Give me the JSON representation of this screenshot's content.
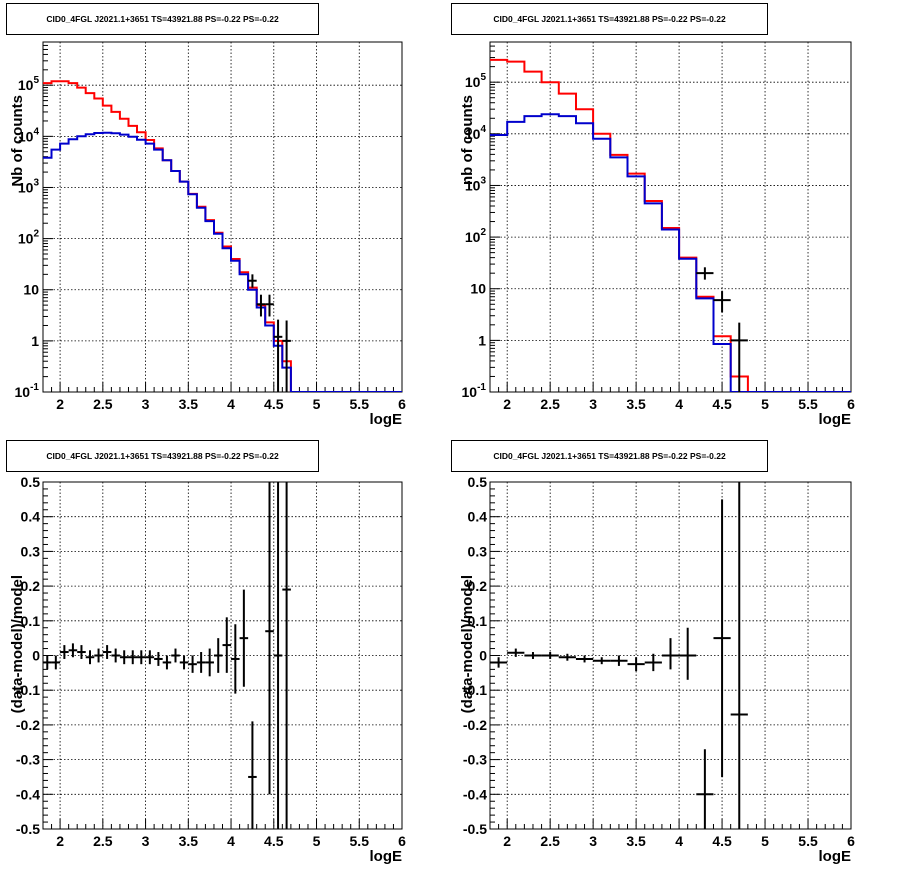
{
  "chart_data": [
    {
      "type": "step",
      "title": "CID0_4FGL J2021.1+3651 TS=43921.88 PS=-0.22 PS=-0.22",
      "xlabel": "logE",
      "ylabel": "Nb of counts",
      "xlim": [
        1.8,
        6.0
      ],
      "ylim": [
        0.1,
        700000
      ],
      "yscale": "log",
      "grid": true,
      "xticks": [
        "2",
        "2.5",
        "3",
        "3.5",
        "4",
        "4.5",
        "5",
        "5.5",
        "6"
      ],
      "yticks": [
        "10^-1",
        "1",
        "10",
        "10^2",
        "10^3",
        "10^4",
        "10^5"
      ],
      "bin_edges": [
        1.8,
        1.9,
        2.0,
        2.1,
        2.2,
        2.3,
        2.4,
        2.5,
        2.6,
        2.7,
        2.8,
        2.9,
        3.0,
        3.1,
        3.2,
        3.3,
        3.4,
        3.5,
        3.6,
        3.7,
        3.8,
        3.9,
        4.0,
        4.1,
        4.2,
        4.3,
        4.4,
        4.5,
        4.6,
        4.7,
        4.8,
        4.9,
        5.0,
        5.1,
        5.2,
        5.3,
        5.4,
        5.5,
        5.6,
        5.7,
        5.8,
        5.9,
        6.0
      ],
      "series": [
        {
          "color": "#ff0000",
          "values": [
            110000,
            120000,
            120000,
            110000,
            90000,
            70000,
            55000,
            40000,
            30000,
            22000,
            16000,
            12000,
            8500,
            5800,
            3400,
            2100,
            1300,
            750,
            420,
            230,
            130,
            70,
            40,
            22,
            11,
            5,
            2.3,
            1.0,
            0.4,
            0.1,
            0.1,
            0.1,
            0.1,
            0.1,
            0.1,
            0.1,
            0.1,
            0.1,
            0.1,
            0.1,
            0.1,
            0.1
          ]
        },
        {
          "color": "#0000cc",
          "values": [
            3800,
            5500,
            7200,
            8800,
            10000,
            11000,
            11600,
            11800,
            11500,
            10800,
            9800,
            8600,
            7200,
            5500,
            3400,
            2100,
            1300,
            740,
            400,
            220,
            125,
            65,
            37,
            20,
            10,
            4.5,
            2.0,
            0.8,
            0.3,
            0.1,
            0.1,
            0.1,
            0.1,
            0.1,
            0.1,
            0.1,
            0.1,
            0.1,
            0.1,
            0.1,
            0.1,
            0.1
          ]
        }
      ],
      "points": [
        {
          "x": 4.25,
          "y": 15,
          "ylo": 11,
          "yhi": 20,
          "xerr": 0.05
        },
        {
          "x": 4.35,
          "y": 5.2,
          "ylo": 3,
          "yhi": 8,
          "xerr": 0.05
        },
        {
          "x": 4.45,
          "y": 5.2,
          "ylo": 3,
          "yhi": 8,
          "xerr": 0.05
        },
        {
          "x": 4.55,
          "y": 1.2,
          "ylo": 0.1,
          "yhi": 2.6,
          "xerr": 0.05
        },
        {
          "x": 4.65,
          "y": 1.0,
          "ylo": 0.1,
          "yhi": 2.5,
          "xerr": 0.05
        }
      ]
    },
    {
      "type": "step",
      "title": "CID0_4FGL J2021.1+3651 TS=43921.88 PS=-0.22 PS=-0.22",
      "xlabel": "logE",
      "ylabel": "nb of counts",
      "xlim": [
        1.8,
        6.0
      ],
      "ylim": [
        0.1,
        600000
      ],
      "yscale": "log",
      "grid": true,
      "xticks": [
        "2",
        "2.5",
        "3",
        "3.5",
        "4",
        "4.5",
        "5",
        "5.5",
        "6"
      ],
      "yticks": [
        "10^-1",
        "1",
        "10",
        "10^2",
        "10^3",
        "10^4",
        "10^5"
      ],
      "bin_edges": [
        1.8,
        2.0,
        2.2,
        2.4,
        2.6,
        2.8,
        3.0,
        3.2,
        3.4,
        3.6,
        3.8,
        4.0,
        4.2,
        4.4,
        4.6,
        4.8,
        5.0,
        5.2,
        5.4,
        5.6,
        5.8,
        6.0
      ],
      "series": [
        {
          "color": "#ff0000",
          "values": [
            270000,
            250000,
            160000,
            100000,
            60000,
            30000,
            10000,
            3900,
            1700,
            500,
            150,
            40,
            7,
            1.2,
            0.2,
            0.1,
            0.1,
            0.1,
            0.1,
            0.1,
            0.1
          ]
        },
        {
          "color": "#0000cc",
          "values": [
            9500,
            17000,
            22000,
            24000,
            22000,
            16000,
            8000,
            3500,
            1500,
            450,
            140,
            38,
            6.5,
            0.85,
            0.1,
            0.1,
            0.1,
            0.1,
            0.1,
            0.1,
            0.1
          ]
        }
      ],
      "points": [
        {
          "x": 4.3,
          "y": 20,
          "ylo": 15,
          "yhi": 26,
          "xerr": 0.1
        },
        {
          "x": 4.5,
          "y": 6,
          "ylo": 3.5,
          "yhi": 9,
          "xerr": 0.1
        },
        {
          "x": 4.7,
          "y": 1.0,
          "ylo": 0.1,
          "yhi": 2.2,
          "xerr": 0.1
        }
      ]
    },
    {
      "type": "scatter",
      "title": "CID0_4FGL J2021.1+3651 TS=43921.88 PS=-0.22 PS=-0.22",
      "xlabel": "logE",
      "ylabel": "(data-model)/model",
      "xlim": [
        1.8,
        6.0
      ],
      "ylim": [
        -0.5,
        0.5
      ],
      "grid": true,
      "xticks": [
        "2",
        "2.5",
        "3",
        "3.5",
        "4",
        "4.5",
        "5",
        "5.5",
        "6"
      ],
      "yticks": [
        "-0.5",
        "-0.4",
        "-0.3",
        "-0.2",
        "-0.1",
        "0",
        "0.1",
        "0.2",
        "0.3",
        "0.4",
        "0.5"
      ],
      "points": [
        {
          "x": 1.85,
          "y": -0.02,
          "ylo": -0.04,
          "yhi": 0.0,
          "xerr": 0.05
        },
        {
          "x": 1.95,
          "y": -0.02,
          "ylo": -0.04,
          "yhi": 0.0,
          "xerr": 0.05
        },
        {
          "x": 2.05,
          "y": 0.01,
          "ylo": -0.01,
          "yhi": 0.03,
          "xerr": 0.05
        },
        {
          "x": 2.15,
          "y": 0.015,
          "ylo": -0.005,
          "yhi": 0.035,
          "xerr": 0.05
        },
        {
          "x": 2.25,
          "y": 0.01,
          "ylo": -0.01,
          "yhi": 0.03,
          "xerr": 0.05
        },
        {
          "x": 2.35,
          "y": -0.005,
          "ylo": -0.025,
          "yhi": 0.015,
          "xerr": 0.05
        },
        {
          "x": 2.45,
          "y": 0.0,
          "ylo": -0.02,
          "yhi": 0.02,
          "xerr": 0.05
        },
        {
          "x": 2.55,
          "y": 0.01,
          "ylo": -0.01,
          "yhi": 0.03,
          "xerr": 0.05
        },
        {
          "x": 2.65,
          "y": 0.0,
          "ylo": -0.02,
          "yhi": 0.02,
          "xerr": 0.05
        },
        {
          "x": 2.75,
          "y": -0.005,
          "ylo": -0.025,
          "yhi": 0.015,
          "xerr": 0.05
        },
        {
          "x": 2.85,
          "y": -0.005,
          "ylo": -0.025,
          "yhi": 0.015,
          "xerr": 0.05
        },
        {
          "x": 2.95,
          "y": -0.005,
          "ylo": -0.025,
          "yhi": 0.015,
          "xerr": 0.05
        },
        {
          "x": 3.05,
          "y": -0.005,
          "ylo": -0.025,
          "yhi": 0.015,
          "xerr": 0.05
        },
        {
          "x": 3.15,
          "y": -0.01,
          "ylo": -0.03,
          "yhi": 0.01,
          "xerr": 0.05
        },
        {
          "x": 3.25,
          "y": -0.02,
          "ylo": -0.04,
          "yhi": 0.0,
          "xerr": 0.05
        },
        {
          "x": 3.35,
          "y": 0.0,
          "ylo": -0.02,
          "yhi": 0.02,
          "xerr": 0.05
        },
        {
          "x": 3.45,
          "y": -0.02,
          "ylo": -0.04,
          "yhi": 0.0,
          "xerr": 0.05
        },
        {
          "x": 3.55,
          "y": -0.025,
          "ylo": -0.05,
          "yhi": 0.0,
          "xerr": 0.05
        },
        {
          "x": 3.65,
          "y": -0.02,
          "ylo": -0.05,
          "yhi": 0.01,
          "xerr": 0.05
        },
        {
          "x": 3.75,
          "y": -0.02,
          "ylo": -0.06,
          "yhi": 0.02,
          "xerr": 0.05
        },
        {
          "x": 3.85,
          "y": 0.0,
          "ylo": -0.05,
          "yhi": 0.05,
          "xerr": 0.05
        },
        {
          "x": 3.95,
          "y": 0.03,
          "ylo": -0.05,
          "yhi": 0.11,
          "xerr": 0.05
        },
        {
          "x": 4.05,
          "y": -0.01,
          "ylo": -0.11,
          "yhi": 0.09,
          "xerr": 0.05
        },
        {
          "x": 4.15,
          "y": 0.05,
          "ylo": -0.09,
          "yhi": 0.19,
          "xerr": 0.05
        },
        {
          "x": 4.25,
          "y": -0.35,
          "ylo": -0.5,
          "yhi": -0.19,
          "xerr": 0.05
        },
        {
          "x": 4.45,
          "y": 0.07,
          "ylo": -0.4,
          "yhi": 0.5,
          "xerr": 0.05
        },
        {
          "x": 4.55,
          "y": 0.0,
          "ylo": -0.5,
          "yhi": 0.5,
          "xerr": 0.05
        },
        {
          "x": 4.65,
          "y": 0.19,
          "ylo": -0.5,
          "yhi": 0.5,
          "xerr": 0.05
        }
      ]
    },
    {
      "type": "scatter",
      "title": "CID0_4FGL J2021.1+3651 TS=43921.88 PS=-0.22 PS=-0.22",
      "xlabel": "logE",
      "ylabel": "(data-model)/model",
      "xlim": [
        1.8,
        6.0
      ],
      "ylim": [
        -0.5,
        0.5
      ],
      "grid": true,
      "xticks": [
        "2",
        "2.5",
        "3",
        "3.5",
        "4",
        "4.5",
        "5",
        "5.5",
        "6"
      ],
      "yticks": [
        "-0.5",
        "-0.4",
        "-0.3",
        "-0.2",
        "-0.1",
        "0",
        "0.1",
        "0.2",
        "0.3",
        "0.4",
        "0.5"
      ],
      "points": [
        {
          "x": 1.9,
          "y": -0.02,
          "ylo": -0.035,
          "yhi": -0.005,
          "xerr": 0.1
        },
        {
          "x": 2.1,
          "y": 0.008,
          "ylo": -0.004,
          "yhi": 0.02,
          "xerr": 0.1
        },
        {
          "x": 2.3,
          "y": 0.0,
          "ylo": -0.01,
          "yhi": 0.01,
          "xerr": 0.1
        },
        {
          "x": 2.5,
          "y": 0.0,
          "ylo": -0.01,
          "yhi": 0.01,
          "xerr": 0.1
        },
        {
          "x": 2.7,
          "y": -0.005,
          "ylo": -0.015,
          "yhi": 0.005,
          "xerr": 0.1
        },
        {
          "x": 2.9,
          "y": -0.01,
          "ylo": -0.02,
          "yhi": 0.0,
          "xerr": 0.1
        },
        {
          "x": 3.1,
          "y": -0.015,
          "ylo": -0.025,
          "yhi": -0.005,
          "xerr": 0.1
        },
        {
          "x": 3.3,
          "y": -0.015,
          "ylo": -0.03,
          "yhi": 0.0,
          "xerr": 0.1
        },
        {
          "x": 3.5,
          "y": -0.025,
          "ylo": -0.045,
          "yhi": -0.005,
          "xerr": 0.1
        },
        {
          "x": 3.7,
          "y": -0.02,
          "ylo": -0.045,
          "yhi": 0.005,
          "xerr": 0.1
        },
        {
          "x": 3.9,
          "y": 0.0,
          "ylo": -0.04,
          "yhi": 0.05,
          "xerr": 0.1
        },
        {
          "x": 4.1,
          "y": 0.0,
          "ylo": -0.07,
          "yhi": 0.08,
          "xerr": 0.1
        },
        {
          "x": 4.3,
          "y": -0.4,
          "ylo": -0.5,
          "yhi": -0.27,
          "xerr": 0.1
        },
        {
          "x": 4.5,
          "y": 0.05,
          "ylo": -0.35,
          "yhi": 0.45,
          "xerr": 0.1
        },
        {
          "x": 4.7,
          "y": -0.17,
          "ylo": -0.5,
          "yhi": 0.5,
          "xerr": 0.1
        }
      ]
    }
  ]
}
